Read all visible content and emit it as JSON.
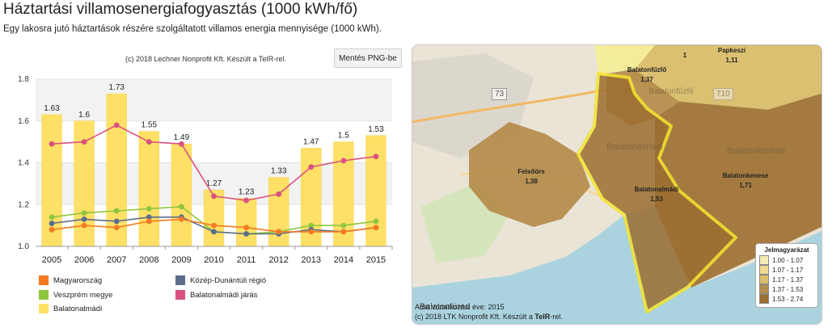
{
  "page": {
    "title": "Háztartási villamosenergiafogyasztás (1000 kWh/fő)",
    "subtitle": "Egy lakosra jutó háztartások részére szolgáltatott villamos energia mennyisége (1000 kWh).",
    "credit": "(c) 2018 Lechner Nonprofit Kft. Készült a TeIR-rel.",
    "save_button": "Mentés PNG-be"
  },
  "chart_data": {
    "type": "bar",
    "title": "",
    "xlabel": "",
    "ylabel": "",
    "ylim": [
      1.0,
      1.8
    ],
    "yticks": [
      "1.0",
      "1.2",
      "1.4",
      "1.6",
      "1.8"
    ],
    "grid": true,
    "categories": [
      "2005",
      "2006",
      "2007",
      "2008",
      "2009",
      "2010",
      "2011",
      "2012",
      "2013",
      "2014",
      "2015"
    ],
    "bars": {
      "name": "Balatonalmádi",
      "color": "#ffe066",
      "values": [
        1.63,
        1.6,
        1.73,
        1.55,
        1.49,
        1.27,
        1.23,
        1.33,
        1.47,
        1.5,
        1.53
      ],
      "labels": [
        "1.63",
        "1.6",
        "1.73",
        "1.55",
        "1.49",
        "1.27",
        "1.23",
        "1.33",
        "1.47",
        "1.5",
        "1.53"
      ]
    },
    "series": [
      {
        "name": "Balatonalmádi járás",
        "color": "#d9527f",
        "values": [
          1.49,
          1.5,
          1.58,
          1.5,
          1.49,
          1.24,
          1.22,
          1.25,
          1.38,
          1.41,
          1.43
        ]
      },
      {
        "name": "Veszprém megye",
        "color": "#8dc63f",
        "values": [
          1.14,
          1.16,
          1.17,
          1.18,
          1.19,
          1.07,
          1.06,
          1.07,
          1.1,
          1.1,
          1.12
        ]
      },
      {
        "name": "Közép-Dunántúli régió",
        "color": "#5a6e8c",
        "values": [
          1.11,
          1.13,
          1.12,
          1.14,
          1.14,
          1.07,
          1.06,
          1.06,
          1.08,
          1.07,
          1.09
        ]
      },
      {
        "name": "Magyarország",
        "color": "#f47a20",
        "values": [
          1.08,
          1.1,
          1.09,
          1.12,
          1.13,
          1.1,
          1.09,
          1.07,
          1.07,
          1.07,
          1.09
        ]
      }
    ],
    "legend": [
      {
        "name": "Magyarország",
        "color": "#f47a20"
      },
      {
        "name": "Közép-Dunántúli régió",
        "color": "#5a6e8c"
      },
      {
        "name": "Veszprém megye",
        "color": "#8dc63f"
      },
      {
        "name": "Balatonalmádi járás",
        "color": "#d9527f"
      },
      {
        "name": "Balatonalmádi",
        "color": "#ffe066"
      }
    ]
  },
  "map": {
    "places": [
      {
        "name": "Papkeszi",
        "value": "1,11"
      },
      {
        "name": "Balatonfűzfő",
        "value": "1,37"
      },
      {
        "name": "Felsőörs",
        "value": "1,38"
      },
      {
        "name": "Balatonalmádi",
        "value": "1,53"
      },
      {
        "name": "Balatonkenese",
        "value": "1,71"
      },
      {
        "name": "1",
        "value": ""
      }
    ],
    "road_label": "73",
    "road_label_2": "710",
    "base_labels": [
      "Balatonfűzfő",
      "Balatonalmádi",
      "Balatonkenese",
      "Balatonfüred"
    ],
    "note_year": "Adat vonatkozási éve: 2015",
    "note_credit_prefix": "(c) 2018 LTK Nonprofit Kft. Készült a ",
    "note_credit_brand": "TeIR",
    "note_credit_suffix": "-rel.",
    "legend_title": "Jelmagyarázat",
    "legend": [
      {
        "range": "1.00 - 1.07",
        "color": "#f6ecb4"
      },
      {
        "range": "1.07 - 1.17",
        "color": "#ecd98f"
      },
      {
        "range": "1.17 - 1.37",
        "color": "#d9bd6a"
      },
      {
        "range": "1.37 - 1.53",
        "color": "#b48c4a"
      },
      {
        "range": "1.53 - 2.74",
        "color": "#9c6e30"
      }
    ]
  }
}
